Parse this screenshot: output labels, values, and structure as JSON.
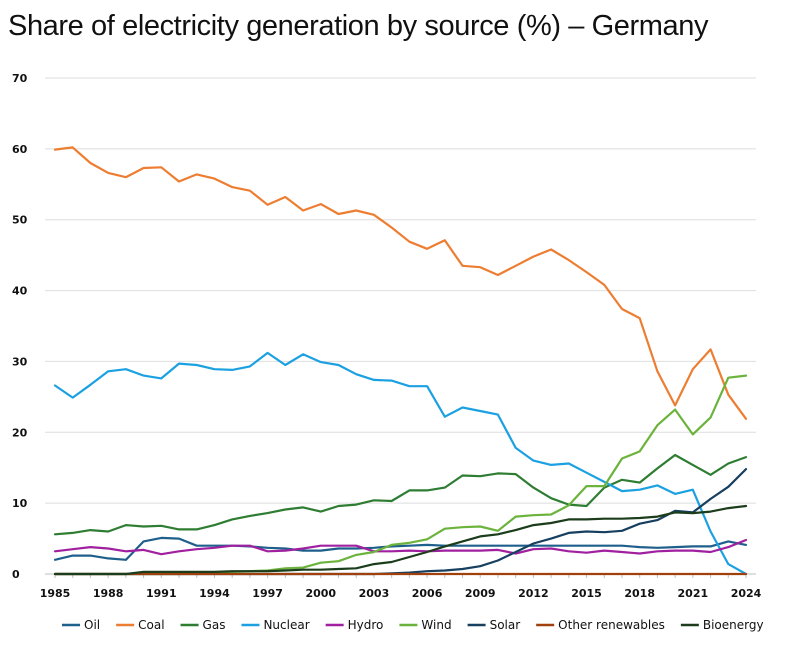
{
  "chart_data": {
    "type": "line",
    "title": "Share of electricity generation by source (%) – Germany",
    "xlabel": "",
    "ylabel": "",
    "ylim": [
      0,
      70
    ],
    "xlim": [
      1985,
      2024
    ],
    "yticks": [
      0,
      10,
      20,
      30,
      40,
      50,
      60,
      70
    ],
    "xticks": [
      1985,
      1988,
      1991,
      1994,
      1997,
      2000,
      2003,
      2006,
      2009,
      2012,
      2015,
      2018,
      2021,
      2024
    ],
    "grid": "horizontal",
    "legend": "bottom",
    "x": [
      1985,
      1986,
      1987,
      1988,
      1989,
      1990,
      1991,
      1992,
      1993,
      1994,
      1995,
      1996,
      1997,
      1998,
      1999,
      2000,
      2001,
      2002,
      2003,
      2004,
      2005,
      2006,
      2007,
      2008,
      2009,
      2010,
      2011,
      2012,
      2013,
      2014,
      2015,
      2016,
      2017,
      2018,
      2019,
      2020,
      2021,
      2022,
      2023,
      2024
    ],
    "series": [
      {
        "name": "Oil",
        "color": "#1f5f8b",
        "values": [
          2.0,
          2.6,
          2.6,
          2.2,
          2.0,
          4.6,
          5.1,
          5.0,
          4.0,
          4.0,
          4.0,
          3.9,
          3.7,
          3.6,
          3.3,
          3.3,
          3.6,
          3.6,
          3.7,
          3.9,
          4.0,
          4.1,
          4.0,
          4.0,
          4.0,
          4.0,
          4.0,
          4.0,
          4.0,
          4.0,
          4.0,
          4.0,
          4.0,
          3.8,
          3.7,
          3.8,
          3.9,
          3.9,
          4.6,
          4.1
        ]
      },
      {
        "name": "Coal",
        "color": "#ed7d31",
        "values": [
          59.9,
          60.2,
          58.0,
          56.6,
          56.0,
          57.3,
          57.4,
          55.4,
          56.4,
          55.8,
          54.6,
          54.1,
          52.1,
          53.2,
          51.3,
          52.2,
          50.8,
          51.3,
          50.7,
          48.9,
          46.9,
          45.9,
          47.1,
          43.5,
          43.3,
          42.2,
          43.5,
          44.8,
          45.8,
          44.3,
          42.6,
          40.8,
          37.4,
          36.1,
          28.6,
          23.8,
          28.9,
          31.7,
          25.3,
          21.9
        ]
      },
      {
        "name": "Gas",
        "color": "#2e7d32",
        "values": [
          5.6,
          5.8,
          6.2,
          6.0,
          6.9,
          6.7,
          6.8,
          6.3,
          6.3,
          6.9,
          7.7,
          8.2,
          8.6,
          9.1,
          9.4,
          8.8,
          9.6,
          9.8,
          10.4,
          10.3,
          11.8,
          11.8,
          12.2,
          13.9,
          13.8,
          14.2,
          14.1,
          12.2,
          10.7,
          9.8,
          9.6,
          12.2,
          13.3,
          12.9,
          14.9,
          16.8,
          15.4,
          14.0,
          15.6,
          16.5
        ]
      },
      {
        "name": "Nuclear",
        "color": "#1ba1e2",
        "values": [
          26.6,
          24.9,
          26.7,
          28.6,
          28.9,
          28.0,
          27.6,
          29.7,
          29.5,
          28.9,
          28.8,
          29.3,
          31.2,
          29.5,
          31.0,
          29.9,
          29.5,
          28.2,
          27.4,
          27.3,
          26.5,
          26.5,
          22.2,
          23.5,
          23.0,
          22.5,
          17.8,
          16.0,
          15.4,
          15.6,
          14.3,
          13.0,
          11.7,
          11.9,
          12.5,
          11.3,
          11.9,
          6.0,
          1.4,
          0.0
        ]
      },
      {
        "name": "Hydro",
        "color": "#a020a0",
        "values": [
          3.2,
          3.5,
          3.8,
          3.6,
          3.2,
          3.4,
          2.8,
          3.2,
          3.5,
          3.7,
          4.0,
          4.0,
          3.2,
          3.3,
          3.6,
          4.0,
          4.0,
          4.0,
          3.2,
          3.2,
          3.3,
          3.2,
          3.3,
          3.3,
          3.3,
          3.4,
          2.9,
          3.5,
          3.6,
          3.2,
          3.0,
          3.3,
          3.1,
          2.9,
          3.2,
          3.3,
          3.3,
          3.1,
          3.8,
          4.8
        ]
      },
      {
        "name": "Wind",
        "color": "#6bb33c",
        "values": [
          0.0,
          0.0,
          0.0,
          0.0,
          0.0,
          0.0,
          0.0,
          0.0,
          0.1,
          0.2,
          0.3,
          0.4,
          0.5,
          0.8,
          0.9,
          1.6,
          1.8,
          2.7,
          3.1,
          4.1,
          4.4,
          4.9,
          6.4,
          6.6,
          6.7,
          6.1,
          8.1,
          8.3,
          8.4,
          9.7,
          12.4,
          12.4,
          16.3,
          17.3,
          21.0,
          23.2,
          19.7,
          22.1,
          27.7,
          28.0
        ]
      },
      {
        "name": "Solar",
        "color": "#173f5f",
        "values": [
          0.0,
          0.0,
          0.0,
          0.0,
          0.0,
          0.0,
          0.0,
          0.0,
          0.0,
          0.0,
          0.0,
          0.0,
          0.0,
          0.0,
          0.0,
          0.0,
          0.0,
          0.0,
          0.0,
          0.1,
          0.2,
          0.4,
          0.5,
          0.7,
          1.1,
          1.9,
          3.1,
          4.3,
          5.0,
          5.8,
          6.0,
          5.9,
          6.1,
          7.1,
          7.6,
          8.9,
          8.7,
          10.6,
          12.3,
          14.8
        ]
      },
      {
        "name": "Other renewables",
        "color": "#a0410d",
        "values": [
          0.0,
          0.0,
          0.0,
          0.0,
          0.0,
          0.0,
          0.0,
          0.0,
          0.0,
          0.0,
          0.0,
          0.0,
          0.0,
          0.0,
          0.0,
          0.0,
          0.0,
          0.0,
          0.0,
          0.0,
          0.0,
          0.0,
          0.0,
          0.0,
          0.0,
          0.0,
          0.0,
          0.0,
          0.0,
          0.0,
          0.0,
          0.0,
          0.0,
          0.0,
          0.0,
          0.0,
          0.0,
          0.0,
          0.0,
          0.0
        ]
      },
      {
        "name": "Bioenergy",
        "color": "#1b3d1b",
        "values": [
          0.0,
          0.0,
          0.0,
          0.0,
          0.0,
          0.3,
          0.3,
          0.3,
          0.3,
          0.3,
          0.4,
          0.4,
          0.4,
          0.5,
          0.6,
          0.6,
          0.7,
          0.8,
          1.4,
          1.7,
          2.4,
          3.1,
          3.9,
          4.6,
          5.3,
          5.6,
          6.2,
          6.9,
          7.2,
          7.7,
          7.7,
          7.8,
          7.8,
          7.9,
          8.1,
          8.7,
          8.6,
          8.8,
          9.3,
          9.6
        ]
      }
    ]
  }
}
